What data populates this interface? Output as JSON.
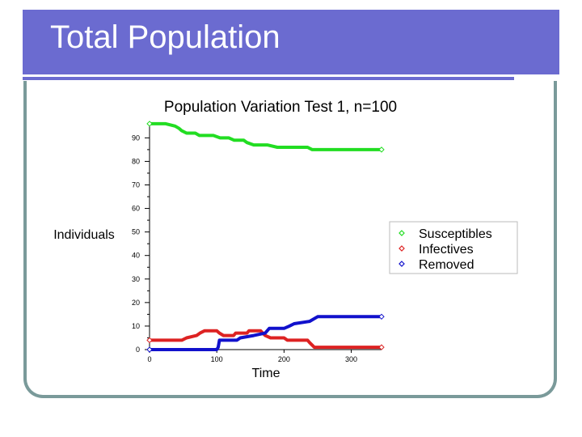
{
  "slide": {
    "title": "Total Population",
    "accent_color": "#6b6bd0",
    "frame_color": "#7a9a9a"
  },
  "chart_data": {
    "type": "line",
    "title": "Population Variation Test 1, n=100",
    "xlabel": "Time",
    "ylabel": "Individuals",
    "xlim": [
      0,
      345
    ],
    "ylim": [
      0,
      97
    ],
    "x_ticks": [
      0,
      100,
      200,
      300
    ],
    "y_ticks": [
      0,
      10,
      20,
      30,
      40,
      50,
      60,
      70,
      80,
      90
    ],
    "x_tick_labels": [
      "0",
      "100",
      "200",
      "300"
    ],
    "y_tick_labels": [
      "0",
      "10",
      "20",
      "30",
      "40",
      "50",
      "60",
      "70",
      "80",
      "90"
    ],
    "grid": false,
    "legend_position": "right",
    "series": [
      {
        "name": "Susceptibles",
        "color": "#22dd22",
        "points": [
          [
            0,
            96
          ],
          [
            24,
            96
          ],
          [
            38,
            95
          ],
          [
            44,
            94
          ],
          [
            48,
            93
          ],
          [
            55,
            92
          ],
          [
            68,
            92
          ],
          [
            74,
            91
          ],
          [
            95,
            91
          ],
          [
            105,
            90
          ],
          [
            118,
            90
          ],
          [
            126,
            89
          ],
          [
            140,
            89
          ],
          [
            145,
            88
          ],
          [
            155,
            87
          ],
          [
            160,
            87
          ],
          [
            175,
            87
          ],
          [
            190,
            86
          ],
          [
            210,
            86
          ],
          [
            235,
            86
          ],
          [
            242,
            85
          ],
          [
            345,
            85
          ]
        ]
      },
      {
        "name": "Infectives",
        "color": "#dd2222",
        "points": [
          [
            0,
            4
          ],
          [
            48,
            4
          ],
          [
            55,
            5
          ],
          [
            70,
            6
          ],
          [
            75,
            7
          ],
          [
            82,
            8
          ],
          [
            100,
            8
          ],
          [
            104,
            7
          ],
          [
            110,
            6
          ],
          [
            125,
            6
          ],
          [
            128,
            7
          ],
          [
            145,
            7
          ],
          [
            148,
            8
          ],
          [
            165,
            8
          ],
          [
            172,
            6
          ],
          [
            180,
            5
          ],
          [
            200,
            5
          ],
          [
            205,
            4
          ],
          [
            235,
            4
          ],
          [
            238,
            3
          ],
          [
            245,
            1
          ],
          [
            345,
            1
          ]
        ]
      },
      {
        "name": "Removed",
        "color": "#1111cc",
        "points": [
          [
            0,
            0
          ],
          [
            100,
            0
          ],
          [
            102,
            1
          ],
          [
            104,
            4
          ],
          [
            130,
            4
          ],
          [
            135,
            5
          ],
          [
            155,
            6
          ],
          [
            172,
            7
          ],
          [
            178,
            9
          ],
          [
            200,
            9
          ],
          [
            208,
            10
          ],
          [
            215,
            11
          ],
          [
            238,
            12
          ],
          [
            250,
            14
          ],
          [
            345,
            14
          ]
        ]
      }
    ]
  }
}
